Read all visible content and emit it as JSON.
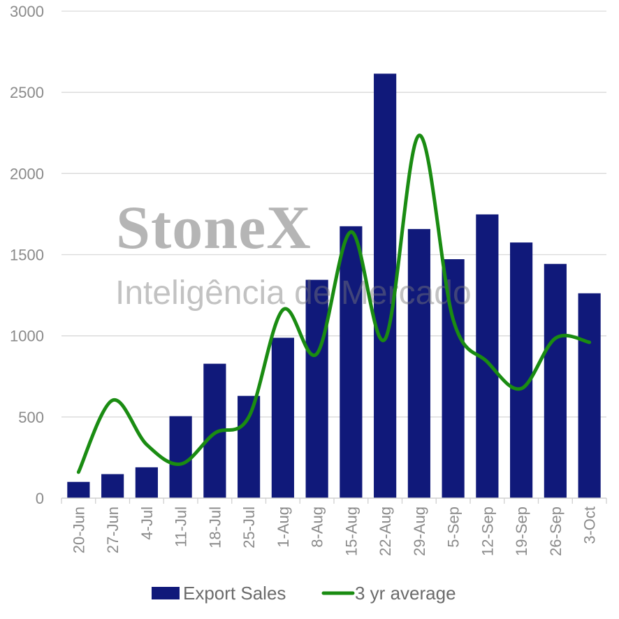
{
  "watermark": {
    "brand": "StoneX",
    "tagline": "Inteligência de Mercado"
  },
  "chart_data": {
    "type": "bar",
    "categories": [
      "20-Jun",
      "27-Jun",
      "4-Jul",
      "11-Jul",
      "18-Jul",
      "25-Jul",
      "1-Aug",
      "8-Aug",
      "15-Aug",
      "22-Aug",
      "29-Aug",
      "5-Sep",
      "12-Sep",
      "19-Sep",
      "26-Sep",
      "3-Oct"
    ],
    "series": [
      {
        "name": "Export Sales",
        "kind": "bar",
        "color": "#10197a",
        "values": [
          100,
          148,
          190,
          505,
          828,
          630,
          988,
          1345,
          1675,
          2615,
          1658,
          1472,
          1748,
          1575,
          1443,
          1262
        ]
      },
      {
        "name": "3 yr average",
        "kind": "line",
        "color": "#1a8c12",
        "values": [
          160,
          603,
          330,
          210,
          400,
          500,
          1160,
          890,
          1640,
          980,
          2235,
          1100,
          840,
          675,
          985,
          960
        ]
      }
    ],
    "ylim": [
      0,
      3000
    ],
    "yticks": [
      0,
      500,
      1000,
      1500,
      2000,
      2500,
      3000
    ],
    "grid": true,
    "legend_position": "bottom"
  }
}
